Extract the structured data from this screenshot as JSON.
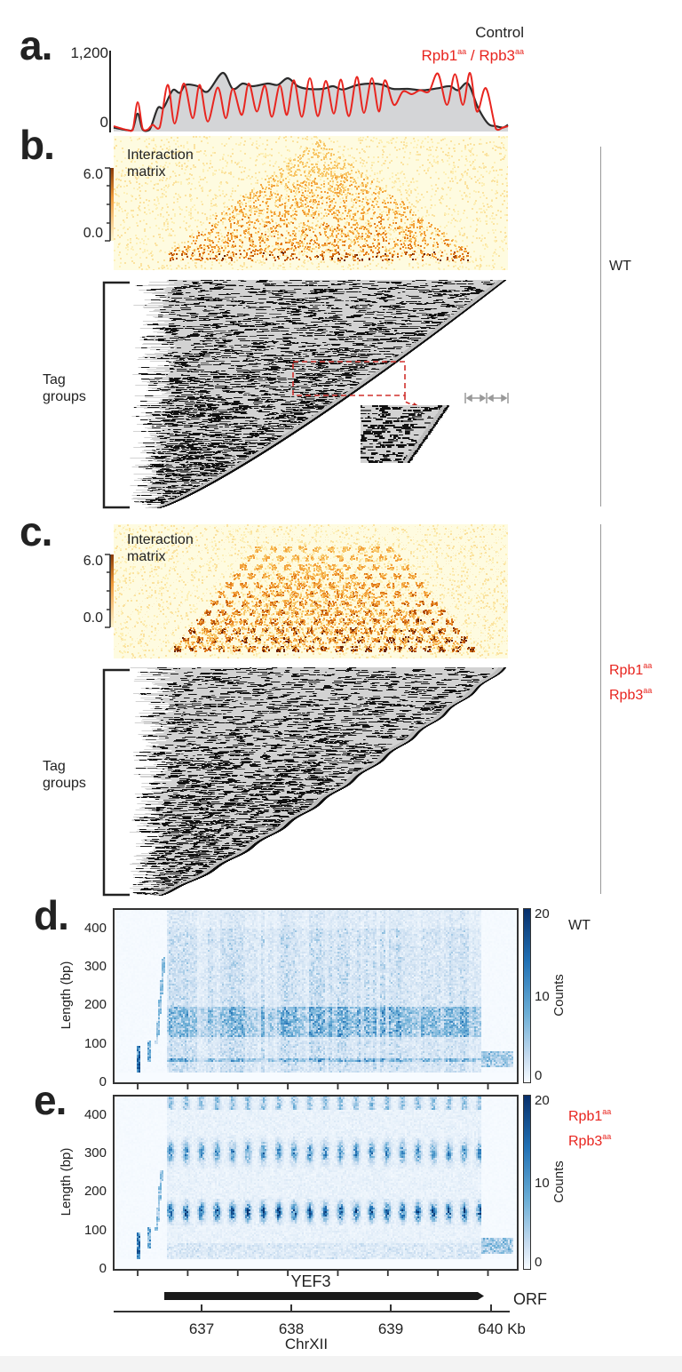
{
  "panel_labels": {
    "a": "a.",
    "b": "b.",
    "c": "c.",
    "d": "d.",
    "e": "e."
  },
  "colors": {
    "control": "#2b2b2b",
    "mutant": "#e8251f",
    "coverage_fill": "#d4d5d7",
    "matrix_bg": "#fefbe0",
    "counts_max": "#08306b"
  },
  "conditions": {
    "wt": "WT",
    "mutant_line1": [
      "Rpb1",
      "aa"
    ],
    "mutant_line2": [
      "Rpb3",
      "aa"
    ]
  },
  "chart_data": [
    {
      "panel": "a",
      "type": "area",
      "ylim": [
        0,
        1200
      ],
      "yticks": [
        "0",
        "1,200"
      ],
      "xlim_kb": [
        636.26,
        640.2
      ],
      "legend": "top-right",
      "series": [
        {
          "name": "Control",
          "color": "#2b2b2b",
          "filled": true,
          "x": [
            636.26,
            636.4,
            636.45,
            636.5,
            636.55,
            636.62,
            636.7,
            636.76,
            636.85,
            636.92,
            636.98,
            637.1,
            637.2,
            637.35,
            637.45,
            637.55,
            637.65,
            637.8,
            637.9,
            638.0,
            638.1,
            638.2,
            638.35,
            638.45,
            638.55,
            638.7,
            638.85,
            638.95,
            639.05,
            639.2,
            639.35,
            639.5,
            639.62,
            639.7,
            639.8,
            639.9,
            640.0,
            640.08,
            640.15,
            640.2
          ],
          "y": [
            60,
            20,
            30,
            270,
            30,
            30,
            350,
            360,
            620,
            580,
            700,
            680,
            600,
            880,
            640,
            720,
            680,
            720,
            700,
            800,
            680,
            640,
            640,
            680,
            630,
            700,
            720,
            700,
            640,
            640,
            620,
            650,
            680,
            620,
            720,
            360,
            120,
            80,
            60,
            100
          ]
        },
        {
          "name_parts": [
            "Rpb1",
            "aa",
            " / Rpb3",
            "aa"
          ],
          "color": "#e8251f",
          "filled": false,
          "x": [
            636.26,
            636.4,
            636.45,
            636.5,
            636.55,
            636.6,
            636.65,
            636.72,
            636.8,
            636.87,
            636.96,
            637.05,
            637.12,
            637.2,
            637.3,
            637.38,
            637.45,
            637.54,
            637.61,
            637.69,
            637.77,
            637.84,
            637.92,
            637.99,
            638.06,
            638.14,
            638.22,
            638.3,
            638.38,
            638.46,
            638.53,
            638.61,
            638.69,
            638.76,
            638.84,
            638.91,
            638.97,
            639.06,
            639.15,
            639.24,
            639.32,
            639.41,
            639.5,
            639.59,
            639.67,
            639.75,
            639.82,
            639.89,
            639.98,
            640.08,
            640.15,
            640.2
          ],
          "y": [
            80,
            20,
            20,
            440,
            40,
            30,
            100,
            60,
            700,
            120,
            720,
            200,
            700,
            150,
            660,
            200,
            640,
            250,
            720,
            300,
            690,
            220,
            690,
            250,
            770,
            220,
            800,
            230,
            760,
            270,
            780,
            230,
            820,
            280,
            800,
            300,
            770,
            400,
            600,
            560,
            620,
            600,
            870,
            400,
            860,
            400,
            880,
            300,
            650,
            40,
            60,
            80
          ]
        }
      ]
    },
    {
      "panel": "b",
      "type": "heatmap",
      "condition": "WT",
      "title": "Interaction matrix",
      "colorbar_ticks": [
        "0.0",
        "6.0"
      ],
      "colorbar_range": [
        0.0,
        6.0
      ],
      "colormap": "YlOrBr"
    },
    {
      "panel": "b",
      "type": "heatmap",
      "condition": "WT",
      "ylabel": "Tag groups",
      "colormap": "binary"
    },
    {
      "panel": "c",
      "type": "heatmap",
      "condition": "Rpb1aa Rpb3aa",
      "title": "Interaction matrix",
      "colorbar_ticks": [
        "0.0",
        "6.0"
      ],
      "colorbar_range": [
        0.0,
        6.0
      ],
      "colormap": "YlOrBr"
    },
    {
      "panel": "c",
      "type": "heatmap",
      "condition": "Rpb1aa Rpb3aa",
      "ylabel": "Tag groups",
      "colormap": "binary"
    },
    {
      "panel": "d",
      "type": "heatmap",
      "condition": "WT",
      "ylabel": "Length (bp)",
      "ylim": [
        0,
        450
      ],
      "yticks": [
        "0",
        "100",
        "200",
        "300",
        "400"
      ],
      "colorbar_label": "Counts",
      "colorbar_ticks": [
        "0",
        "10",
        "20"
      ],
      "colorbar_range": [
        0,
        20
      ],
      "colormap": "Blues"
    },
    {
      "panel": "e",
      "type": "heatmap",
      "condition": "Rpb1aa Rpb3aa",
      "ylabel": "Length (bp)",
      "ylim": [
        0,
        450
      ],
      "yticks": [
        "0",
        "100",
        "200",
        "300",
        "400"
      ],
      "colorbar_label": "Counts",
      "colorbar_ticks": [
        "0",
        "10",
        "20"
      ],
      "colorbar_range": [
        0,
        20
      ],
      "colormap": "Blues"
    }
  ],
  "gene_track": {
    "gene_name": "YEF3",
    "track_label": "ORF",
    "gene_start_kb": 636.75,
    "gene_end_kb": 639.95,
    "strand": "+"
  },
  "genome_axis": {
    "ticks": [
      "637",
      "638",
      "639",
      "640 Kb"
    ],
    "chromosome": "ChrXII"
  }
}
